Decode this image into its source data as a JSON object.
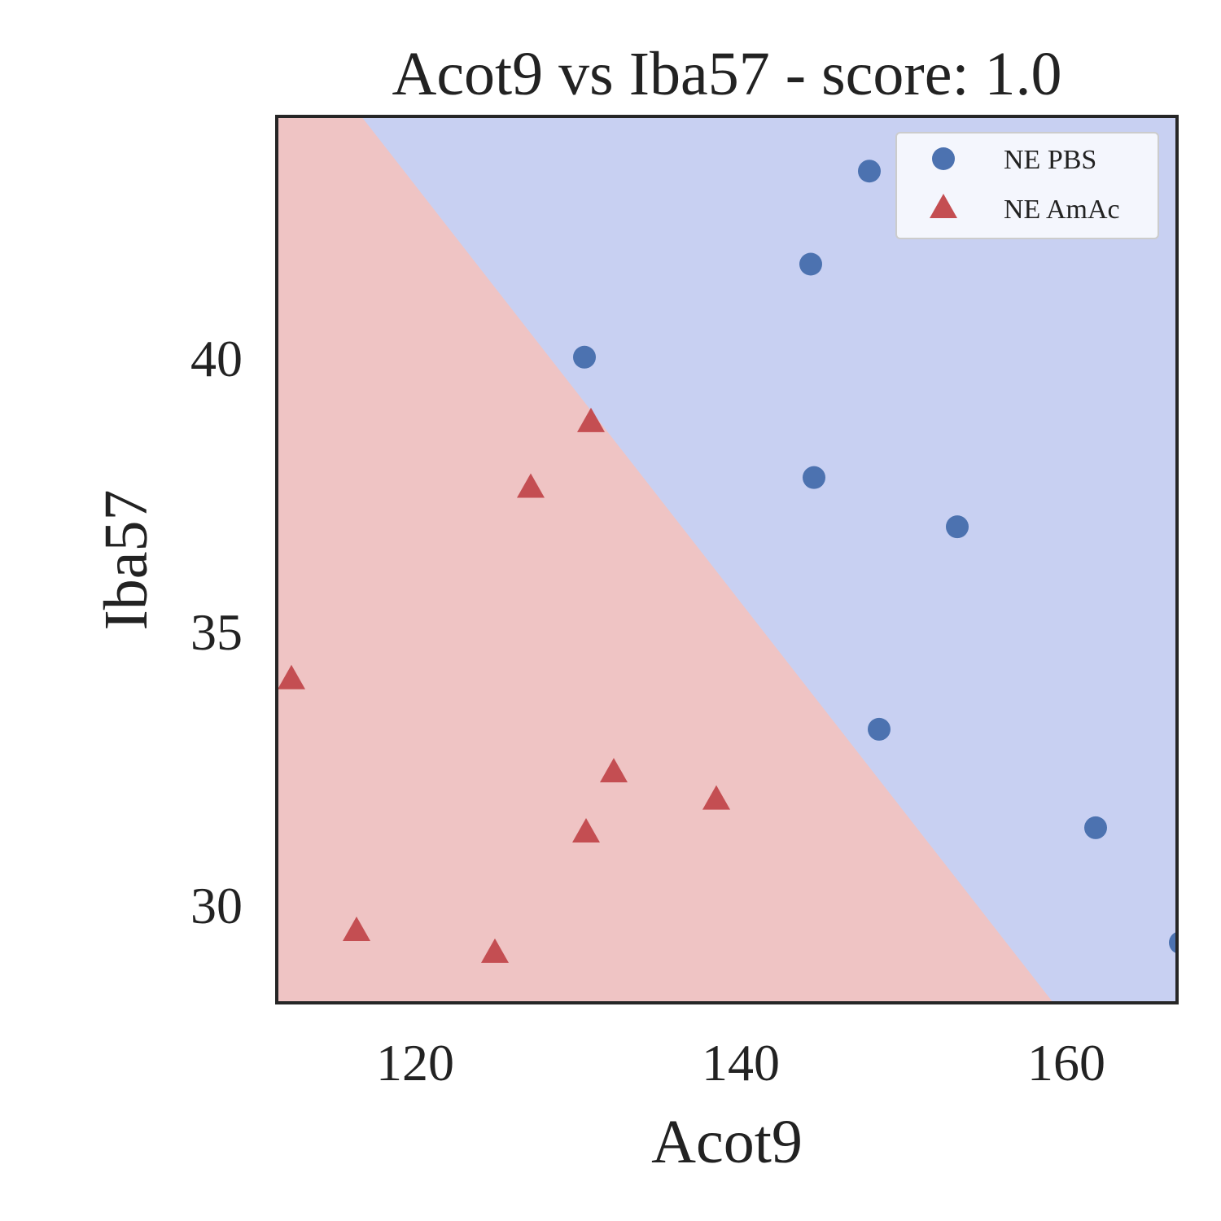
{
  "chart_data": {
    "type": "scatter",
    "title": "Acot9 vs Iba57 - score: 1.0",
    "xlabel": "Acot9",
    "ylabel": "Iba57",
    "xlim": [
      111.5,
      166.8
    ],
    "ylim": [
      28.2,
      44.4
    ],
    "xticks": [
      120,
      140,
      160
    ],
    "yticks": [
      30,
      35,
      40
    ],
    "grid": false,
    "legend_position": "top-right",
    "decision_boundary": {
      "points": [
        [
          116.7,
          44.4
        ],
        [
          159.2,
          28.2
        ]
      ],
      "region_colors": {
        "NE PBS": "#c8d0f2",
        "NE AmAc": "#efc4c4"
      }
    },
    "series": [
      {
        "name": "NE PBS",
        "marker": "circle",
        "color": "#4c72b0",
        "points": [
          [
            147.9,
            43.4
          ],
          [
            144.3,
            41.7
          ],
          [
            130.4,
            40.0
          ],
          [
            144.5,
            37.8
          ],
          [
            153.3,
            36.9
          ],
          [
            148.5,
            33.2
          ],
          [
            161.8,
            31.4
          ],
          [
            167.0,
            29.3
          ]
        ]
      },
      {
        "name": "NE AmAc",
        "marker": "triangle",
        "color": "#c44e52",
        "points": [
          [
            130.8,
            38.8
          ],
          [
            127.1,
            37.6
          ],
          [
            112.4,
            34.1
          ],
          [
            132.2,
            32.4
          ],
          [
            138.5,
            31.9
          ],
          [
            130.5,
            31.3
          ],
          [
            116.4,
            29.5
          ],
          [
            124.9,
            29.1
          ]
        ]
      }
    ]
  }
}
